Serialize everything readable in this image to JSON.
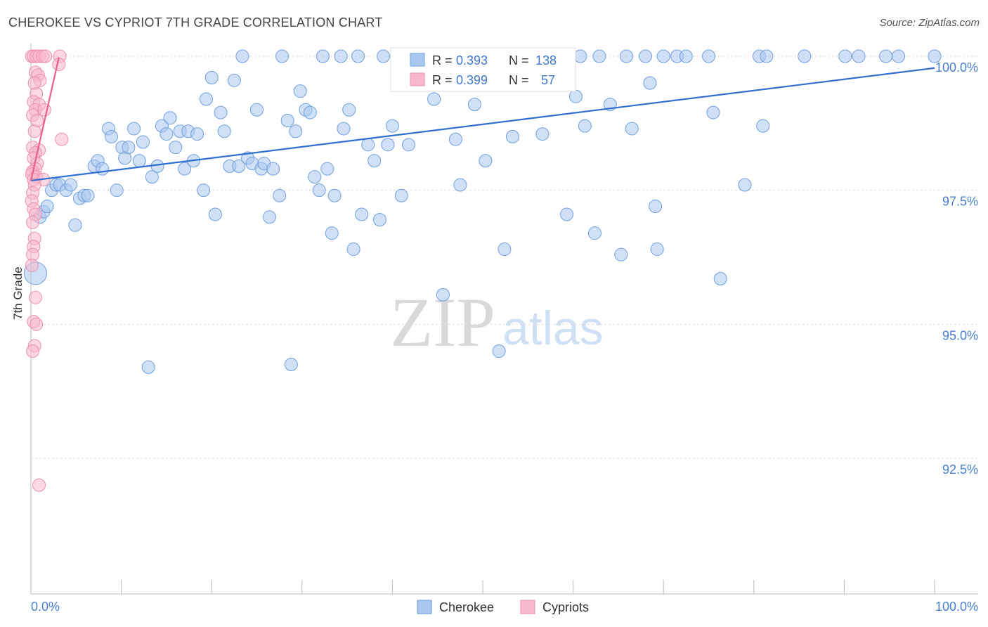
{
  "header": {
    "title": "CHEROKEE VS CYPRIOT 7TH GRADE CORRELATION CHART",
    "source": "Source: ZipAtlas.com"
  },
  "watermark": {
    "zip": "ZIP",
    "atlas": "atlas"
  },
  "legend_stats": [
    {
      "r_label": "R =",
      "r_value": "0.393",
      "n_label": "N =",
      "n_value": "138"
    },
    {
      "r_label": "R =",
      "r_value": "0.399",
      "n_label": "N =",
      "n_value": "57"
    }
  ],
  "bottom_legend": [
    {
      "label": "Cherokee"
    },
    {
      "label": "Cypriots"
    }
  ],
  "colors": {
    "blue_fill": "#a9c8f0",
    "blue_stroke": "#6f9fdc",
    "blue_line": "#2f6fd0",
    "pink_fill": "#f7b8cb",
    "pink_stroke": "#ec8fae",
    "pink_line": "#e8608a",
    "axis_text": "#4a7fd0",
    "grid": "#dddddd"
  },
  "chart_data": {
    "type": "scatter",
    "title": "CHEROKEE VS CYPRIOT 7TH GRADE CORRELATION CHART",
    "xlabel": "",
    "ylabel": "7th Grade",
    "xlim": [
      0,
      100
    ],
    "ylim": [
      89.8,
      100.4
    ],
    "x_tick_labels": [
      "0.0%",
      "100.0%"
    ],
    "y_ticks": [
      92.5,
      95.0,
      97.5,
      100.0
    ],
    "y_tick_labels": [
      "92.5%",
      "95.0%",
      "97.5%",
      "100.0%"
    ],
    "grid": true,
    "legend_position": "top-center",
    "series": [
      {
        "name": "Cherokee",
        "r": 0.393,
        "n": 138,
        "trend": {
          "x": [
            0,
            100
          ],
          "y": [
            97.68,
            99.78
          ]
        },
        "points": [
          [
            0.5,
            95.95,
            2
          ],
          [
            1.0,
            97.0,
            1
          ],
          [
            1.4,
            97.1,
            1
          ],
          [
            1.8,
            97.2,
            1
          ],
          [
            2.3,
            97.5,
            1
          ],
          [
            2.8,
            97.6,
            1
          ],
          [
            3.2,
            97.6,
            1
          ],
          [
            3.9,
            97.5,
            1
          ],
          [
            4.4,
            97.6,
            1
          ],
          [
            4.9,
            96.85,
            1
          ],
          [
            5.4,
            97.35,
            1
          ],
          [
            5.9,
            97.4,
            1
          ],
          [
            6.3,
            97.4,
            1
          ],
          [
            7.0,
            97.95,
            1
          ],
          [
            7.4,
            98.05,
            1
          ],
          [
            7.9,
            97.9,
            1
          ],
          [
            8.6,
            98.65,
            1
          ],
          [
            8.9,
            98.5,
            1
          ],
          [
            9.5,
            97.5,
            1
          ],
          [
            10.1,
            98.3,
            1
          ],
          [
            10.4,
            98.1,
            1
          ],
          [
            10.8,
            98.3,
            1
          ],
          [
            11.4,
            98.65,
            1
          ],
          [
            12.0,
            98.05,
            1
          ],
          [
            12.4,
            98.4,
            1
          ],
          [
            13.0,
            94.2,
            1
          ],
          [
            13.4,
            97.75,
            1
          ],
          [
            14.0,
            97.95,
            1
          ],
          [
            14.5,
            98.7,
            1
          ],
          [
            15.0,
            98.55,
            1
          ],
          [
            15.4,
            98.85,
            1
          ],
          [
            16.0,
            98.3,
            1
          ],
          [
            16.5,
            98.6,
            1
          ],
          [
            17.0,
            97.9,
            1
          ],
          [
            17.4,
            98.6,
            1
          ],
          [
            18.0,
            98.05,
            1
          ],
          [
            18.4,
            98.55,
            1
          ],
          [
            19.1,
            97.5,
            1
          ],
          [
            19.4,
            99.2,
            1
          ],
          [
            20.0,
            99.6,
            1
          ],
          [
            20.4,
            97.05,
            1
          ],
          [
            21.0,
            98.95,
            1
          ],
          [
            21.4,
            98.6,
            1
          ],
          [
            22.0,
            97.95,
            1
          ],
          [
            22.5,
            99.55,
            1
          ],
          [
            23.0,
            97.95,
            1
          ],
          [
            23.4,
            100.0,
            1
          ],
          [
            24.0,
            98.1,
            1
          ],
          [
            24.5,
            98.0,
            1
          ],
          [
            25.0,
            99.0,
            1
          ],
          [
            25.5,
            97.9,
            1
          ],
          [
            25.8,
            98.0,
            1
          ],
          [
            26.4,
            97.0,
            1
          ],
          [
            26.8,
            97.9,
            1
          ],
          [
            27.5,
            97.4,
            1
          ],
          [
            27.8,
            100.0,
            1
          ],
          [
            28.4,
            98.8,
            1
          ],
          [
            28.8,
            94.25,
            1
          ],
          [
            29.3,
            98.6,
            1
          ],
          [
            29.8,
            99.35,
            1
          ],
          [
            30.4,
            99.0,
            1
          ],
          [
            30.9,
            98.95,
            1
          ],
          [
            31.4,
            97.75,
            1
          ],
          [
            31.9,
            97.5,
            1
          ],
          [
            32.3,
            100.0,
            1
          ],
          [
            32.8,
            97.9,
            1
          ],
          [
            33.3,
            96.7,
            1
          ],
          [
            33.6,
            97.4,
            1
          ],
          [
            34.3,
            100.0,
            1
          ],
          [
            34.6,
            98.65,
            1
          ],
          [
            35.2,
            99.0,
            1
          ],
          [
            35.7,
            96.4,
            1
          ],
          [
            36.2,
            100.0,
            1
          ],
          [
            36.6,
            97.05,
            1
          ],
          [
            37.3,
            98.35,
            1
          ],
          [
            38.0,
            98.05,
            1
          ],
          [
            38.6,
            96.95,
            1
          ],
          [
            39.0,
            100.0,
            1
          ],
          [
            39.5,
            98.35,
            1
          ],
          [
            40.0,
            98.7,
            1
          ],
          [
            41.0,
            97.4,
            1
          ],
          [
            41.8,
            98.35,
            1
          ],
          [
            43.0,
            100.0,
            1
          ],
          [
            44.6,
            99.2,
            1
          ],
          [
            45.6,
            95.55,
            1
          ],
          [
            47.0,
            98.45,
            1
          ],
          [
            47.5,
            97.6,
            1
          ],
          [
            49.1,
            99.1,
            1
          ],
          [
            50.3,
            98.05,
            1
          ],
          [
            51.8,
            94.5,
            1
          ],
          [
            52.4,
            96.4,
            1
          ],
          [
            53.3,
            98.5,
            1
          ],
          [
            54.5,
            100.0,
            1
          ],
          [
            56.6,
            98.55,
            1
          ],
          [
            58.6,
            100.0,
            1
          ],
          [
            59.3,
            97.05,
            1
          ],
          [
            60.3,
            99.25,
            1
          ],
          [
            60.8,
            100.0,
            1
          ],
          [
            61.3,
            98.7,
            1
          ],
          [
            62.4,
            96.7,
            1
          ],
          [
            62.9,
            100.0,
            1
          ],
          [
            64.1,
            99.1,
            1
          ],
          [
            65.3,
            96.3,
            1
          ],
          [
            65.9,
            100.0,
            1
          ],
          [
            66.5,
            98.65,
            1
          ],
          [
            68.0,
            100.0,
            1
          ],
          [
            68.5,
            99.5,
            1
          ],
          [
            69.1,
            97.2,
            1
          ],
          [
            69.3,
            96.4,
            1
          ],
          [
            70.0,
            100.0,
            1
          ],
          [
            71.5,
            100.0,
            1
          ],
          [
            72.5,
            100.0,
            1
          ],
          [
            75.0,
            100.0,
            1
          ],
          [
            75.5,
            98.95,
            1
          ],
          [
            76.3,
            95.85,
            1
          ],
          [
            79.0,
            97.6,
            1
          ],
          [
            80.6,
            100.0,
            1
          ],
          [
            81.0,
            98.7,
            1
          ],
          [
            81.4,
            100.0,
            1
          ],
          [
            85.6,
            100.0,
            1
          ],
          [
            90.1,
            100.0,
            1
          ],
          [
            91.6,
            100.0,
            1
          ],
          [
            94.6,
            100.0,
            1
          ],
          [
            96.0,
            100.0,
            1
          ],
          [
            100.0,
            100.0,
            1
          ]
        ]
      },
      {
        "name": "Cypriots",
        "r": 0.399,
        "n": 57,
        "trend": {
          "x": [
            0,
            3.1
          ],
          "y": [
            97.68,
            99.98
          ]
        },
        "points": [
          [
            0.1,
            100.0,
            1
          ],
          [
            0.3,
            100.0,
            1
          ],
          [
            0.6,
            100.0,
            1
          ],
          [
            0.9,
            100.0,
            1
          ],
          [
            1.3,
            100.0,
            1
          ],
          [
            1.6,
            100.0,
            1
          ],
          [
            3.2,
            100.0,
            1
          ],
          [
            3.1,
            99.85,
            1
          ],
          [
            0.5,
            99.7,
            1
          ],
          [
            0.8,
            99.65,
            1
          ],
          [
            1.0,
            99.55,
            1
          ],
          [
            0.4,
            99.5,
            1
          ],
          [
            0.6,
            99.3,
            1
          ],
          [
            0.3,
            99.15,
            1
          ],
          [
            0.9,
            99.1,
            1
          ],
          [
            0.5,
            99.0,
            1
          ],
          [
            1.5,
            99.0,
            1
          ],
          [
            0.2,
            98.9,
            1
          ],
          [
            0.7,
            98.8,
            1
          ],
          [
            0.4,
            98.6,
            1
          ],
          [
            3.4,
            98.45,
            1
          ],
          [
            0.2,
            98.3,
            1
          ],
          [
            0.9,
            98.25,
            1
          ],
          [
            0.5,
            98.2,
            1
          ],
          [
            0.3,
            98.1,
            1
          ],
          [
            0.7,
            98.0,
            1
          ],
          [
            0.5,
            97.9,
            1
          ],
          [
            0.2,
            97.85,
            1
          ],
          [
            0.1,
            97.8,
            1
          ],
          [
            0.6,
            97.75,
            1
          ],
          [
            0.3,
            97.7,
            1
          ],
          [
            1.4,
            97.7,
            1
          ],
          [
            0.4,
            97.6,
            1
          ],
          [
            0.2,
            97.45,
            1
          ],
          [
            0.1,
            97.3,
            1
          ],
          [
            0.3,
            97.15,
            1
          ],
          [
            0.5,
            97.05,
            1
          ],
          [
            0.2,
            96.9,
            1
          ],
          [
            0.4,
            96.6,
            1
          ],
          [
            0.3,
            96.45,
            1
          ],
          [
            0.2,
            96.3,
            1
          ],
          [
            0.1,
            96.1,
            1
          ],
          [
            0.5,
            95.5,
            1
          ],
          [
            0.3,
            95.05,
            1
          ],
          [
            0.6,
            95.0,
            1
          ],
          [
            0.4,
            94.6,
            1
          ],
          [
            0.2,
            94.5,
            1
          ],
          [
            0.9,
            92.0,
            1
          ]
        ]
      }
    ]
  }
}
